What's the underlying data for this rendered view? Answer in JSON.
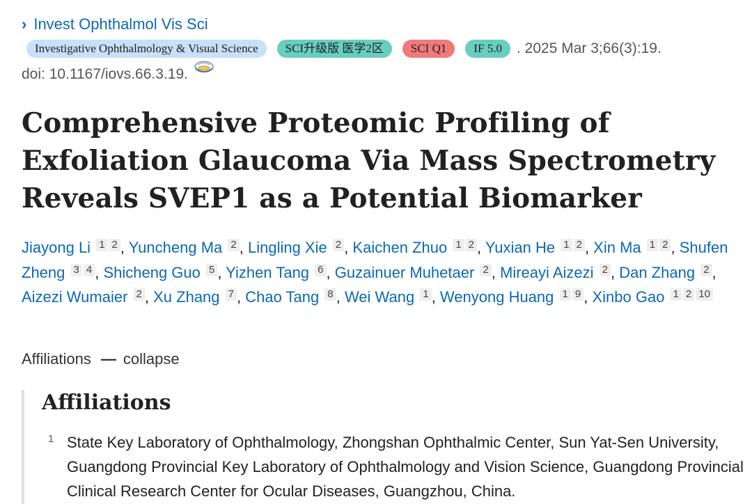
{
  "journal": {
    "link_text": "Invest Ophthalmol Vis Sci"
  },
  "badges": {
    "journal_full": "Investigative Ophthalmology & Visual Science",
    "sci_tier": "SCI升级版 医学2区",
    "quartile": "SCI Q1",
    "impact_factor": "IF 5.0"
  },
  "citation": {
    "date": ". 2025 Mar 3;66(3):19."
  },
  "doi": {
    "text": "doi: 10.1167/iovs.66.3.19."
  },
  "title": "Comprehensive Proteomic Profiling of Exfoliation Glaucoma Via Mass Spectrometry Reveals SVEP1 as a Potential Biomarker",
  "authors": [
    {
      "name": "Jiayong Li",
      "affs": [
        "1",
        "2"
      ]
    },
    {
      "name": "Yuncheng Ma",
      "affs": [
        "2"
      ]
    },
    {
      "name": "Lingling Xie",
      "affs": [
        "2"
      ]
    },
    {
      "name": "Kaichen Zhuo",
      "affs": [
        "1",
        "2"
      ]
    },
    {
      "name": "Yuxian He",
      "affs": [
        "1",
        "2"
      ]
    },
    {
      "name": "Xin Ma",
      "affs": [
        "1",
        "2"
      ]
    },
    {
      "name": "Shufen Zheng",
      "affs": [
        "3",
        "4"
      ]
    },
    {
      "name": "Shicheng Guo",
      "affs": [
        "5"
      ]
    },
    {
      "name": "Yizhen Tang",
      "affs": [
        "6"
      ]
    },
    {
      "name": "Guzainuer Muhetaer",
      "affs": [
        "2"
      ]
    },
    {
      "name": "Mireayi Aizezi",
      "affs": [
        "2"
      ]
    },
    {
      "name": "Dan Zhang",
      "affs": [
        "2"
      ]
    },
    {
      "name": "Aizezi Wumaier",
      "affs": [
        "2"
      ]
    },
    {
      "name": "Xu Zhang",
      "affs": [
        "7"
      ]
    },
    {
      "name": "Chao Tang",
      "affs": [
        "8"
      ]
    },
    {
      "name": "Wei Wang",
      "affs": [
        "1"
      ]
    },
    {
      "name": "Wenyong Huang",
      "affs": [
        "1",
        "9"
      ]
    },
    {
      "name": "Xinbo Gao",
      "affs": [
        "1",
        "2",
        "10"
      ]
    }
  ],
  "affiliations_toggle": {
    "label": "Affiliations",
    "dash": "—",
    "action": "collapse"
  },
  "affiliations": {
    "heading": "Affiliations",
    "items": [
      {
        "num": "1",
        "text": "State Key Laboratory of Ophthalmology, Zhongshan Ophthalmic Center, Sun Yat-Sen University, Guangdong Provincial Key Laboratory of Ophthalmology and Vision Science, Guangdong Provincial Clinical Research Center for Ocular Diseases, Guangzhou, China."
      }
    ]
  },
  "icons": {
    "journal_chevron": "chevron-right-icon",
    "doi_icon": "free-pmc-article-icon"
  },
  "colors": {
    "link": "#0b69b3",
    "badge_journal": "#c8e0f8",
    "badge_teal": "#67cec0",
    "badge_red": "#f07a7a"
  }
}
